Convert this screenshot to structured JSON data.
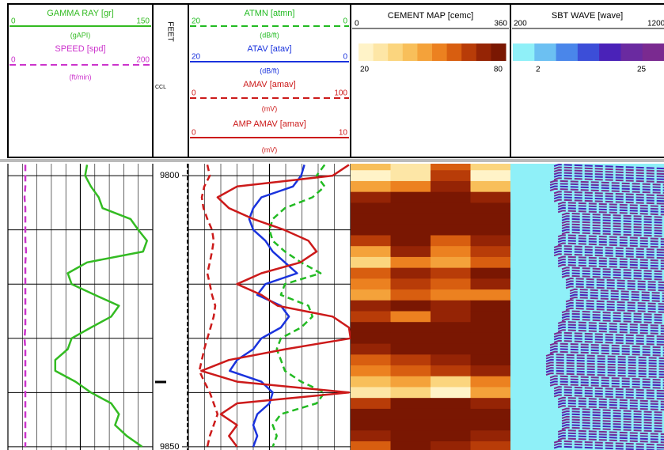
{
  "chart_data": {
    "type": "welllog",
    "depth_label": "FEET",
    "ccl_label": "CCL",
    "ylim": [
      9797.8,
      9850.6
    ],
    "yticks": [
      9800,
      9850
    ],
    "ygrid": [
      9800,
      9810,
      9820,
      9830,
      9840,
      9850
    ],
    "grid": true,
    "depths": [
      9798,
      9800,
      9802,
      9804,
      9806,
      9808,
      9810,
      9812,
      9814,
      9816,
      9818,
      9820,
      9822,
      9824,
      9826,
      9828,
      9830,
      9832,
      9834,
      9836,
      9838,
      9840,
      9842,
      9844,
      9846,
      9848,
      9850
    ],
    "tracks": [
      {
        "curves": [
          {
            "name": "GAMMA RAY [gr]",
            "unit": "(gAPI)",
            "scale": [
              0,
              150
            ],
            "color": "#33bb22",
            "dash": false,
            "values": [
              82,
              80,
              86,
              94,
              98,
              127,
              135,
              144,
              140,
              82,
              62,
              66,
              90,
              115,
              107,
              86,
              66,
              62,
              49,
              49,
              70,
              86,
              107,
              115,
              111,
              123,
              139
            ]
          },
          {
            "name": "SPEED [spd]",
            "unit": "(ft/min)",
            "scale": [
              0,
              200
            ],
            "color": "#cc33cc",
            "dash": true,
            "values": [
              24,
              24,
              24,
              23,
              24,
              24,
              24,
              24,
              25,
              24,
              24,
              24,
              24,
              24,
              24,
              24,
              23,
              24,
              24,
              24,
              24,
              24,
              24,
              24,
              24,
              24,
              24
            ]
          }
        ]
      },
      {
        "curves": [
          {
            "name": "ATMN [atmn]",
            "unit": "(dB/ft)",
            "scale": [
              20,
              0
            ],
            "color": "#22bb22",
            "dash": true,
            "values": [
              3.2,
              4.2,
              3.2,
              4.7,
              8.1,
              9.6,
              10.0,
              9.6,
              8.1,
              6.1,
              3.7,
              8.1,
              8.6,
              5.2,
              4.7,
              6.1,
              8.6,
              9.1,
              8.6,
              8.1,
              6.1,
              3.2,
              4.2,
              8.6,
              9.6,
              9.1,
              9.6
            ]
          },
          {
            "name": "ATAV [atav]",
            "unit": "(dB/ft)",
            "scale": [
              20,
              0
            ],
            "color": "#1a33dd",
            "dash": false,
            "values": [
              5.7,
              6.1,
              7.1,
              11.0,
              12.0,
              12.5,
              12.0,
              10.5,
              9.6,
              8.1,
              6.6,
              10.5,
              11.5,
              8.6,
              7.6,
              8.6,
              11.0,
              12.0,
              14.0,
              14.9,
              11.0,
              9.6,
              10.0,
              11.5,
              12.0,
              11.5,
              12.0
            ]
          },
          {
            "name": "AMAV [amav]",
            "unit": "(mV)",
            "scale": [
              0,
              100
            ],
            "color": "#cc1a1a",
            "dash": true,
            "values": [
              11.7,
              13.2,
              9.8,
              8.3,
              9.3,
              11.7,
              14.6,
              15.6,
              14.6,
              13.2,
              11.7,
              13.2,
              14.6,
              16.6,
              15.6,
              13.7,
              11.7,
              9.8,
              8.3,
              6.8,
              9.8,
              13.2,
              15.6,
              18.0,
              15.6,
              13.2,
              11.7
            ]
          },
          {
            "name": "AMP AMAV [amav]",
            "unit": "(mV)",
            "scale": [
              0,
              10
            ],
            "color": "#cc1a1a",
            "dash": false,
            "values": [
              9.9,
              8.9,
              3.0,
              1.8,
              2.5,
              4.0,
              5.9,
              7.4,
              7.9,
              6.9,
              4.5,
              3.0,
              4.5,
              5.5,
              8.9,
              9.9,
              10.0,
              6.0,
              2.5,
              0.8,
              3.0,
              9.9,
              3.0,
              2.0,
              3.0,
              2.5,
              3.0
            ]
          }
        ]
      }
    ],
    "cement_map": {
      "title": "CEMENT MAP [cemc]",
      "xlim": [
        0,
        360
      ],
      "clim": [
        20,
        80
      ],
      "colors": [
        "#fff3c8",
        "#fde6a6",
        "#fbd57e",
        "#f8bf5a",
        "#f4a23a",
        "#ec8120",
        "#d85e10",
        "#b83c08",
        "#952405",
        "#7a1702"
      ],
      "values": [
        [
          40,
          30,
          60,
          35
        ],
        [
          25,
          30,
          65,
          25
        ],
        [
          45,
          55,
          70,
          40
        ],
        [
          70,
          75,
          80,
          70
        ],
        [
          80,
          80,
          80,
          80
        ],
        [
          80,
          80,
          80,
          80
        ],
        [
          80,
          80,
          78,
          80
        ],
        [
          65,
          75,
          60,
          70
        ],
        [
          45,
          70,
          50,
          65
        ],
        [
          35,
          55,
          45,
          60
        ],
        [
          60,
          70,
          65,
          75
        ],
        [
          55,
          65,
          60,
          70
        ],
        [
          45,
          60,
          50,
          55
        ],
        [
          70,
          75,
          70,
          75
        ],
        [
          65,
          55,
          70,
          80
        ],
        [
          75,
          80,
          75,
          80
        ],
        [
          80,
          80,
          80,
          80
        ],
        [
          70,
          75,
          80,
          80
        ],
        [
          60,
          65,
          70,
          75
        ],
        [
          55,
          60,
          65,
          70
        ],
        [
          40,
          45,
          35,
          50
        ],
        [
          30,
          35,
          25,
          45
        ],
        [
          65,
          80,
          75,
          70
        ],
        [
          75,
          80,
          80,
          78
        ],
        [
          80,
          80,
          80,
          80
        ],
        [
          70,
          80,
          75,
          70
        ],
        [
          60,
          75,
          70,
          65
        ]
      ]
    },
    "sbt_wave": {
      "title": "SBT WAVE [wave]",
      "xlim": [
        200,
        1200
      ],
      "clim": [
        2,
        25
      ],
      "background": "#8ff0f8",
      "colors": [
        "#8ff0f8",
        "#6cc0f2",
        "#4a86ea",
        "#3c4ed8",
        "#4a22b8",
        "#6a2aa0",
        "#7a2a90"
      ],
      "values": [
        484,
        484,
        458,
        484,
        510,
        535,
        535,
        510,
        484,
        510,
        535,
        561,
        587,
        561,
        535,
        510,
        484,
        458,
        432,
        432,
        458,
        484,
        510,
        535,
        535,
        510,
        484
      ]
    }
  }
}
